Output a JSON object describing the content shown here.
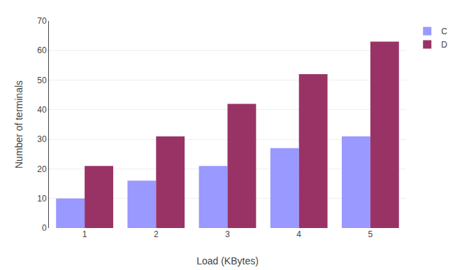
{
  "chart_data": {
    "type": "bar",
    "categories": [
      "1",
      "2",
      "3",
      "4",
      "5"
    ],
    "series": [
      {
        "name": "C",
        "color": "#9999FF",
        "values": [
          10,
          16,
          21,
          27,
          31
        ]
      },
      {
        "name": "D",
        "color": "#993366",
        "values": [
          21,
          31,
          42,
          52,
          63
        ]
      }
    ],
    "xlabel": "Load (KBytes)",
    "ylabel": "Number of terminals",
    "ylim": [
      0,
      70
    ],
    "yticks": [
      0,
      10,
      20,
      30,
      40,
      50,
      60,
      70
    ],
    "grid": true
  }
}
